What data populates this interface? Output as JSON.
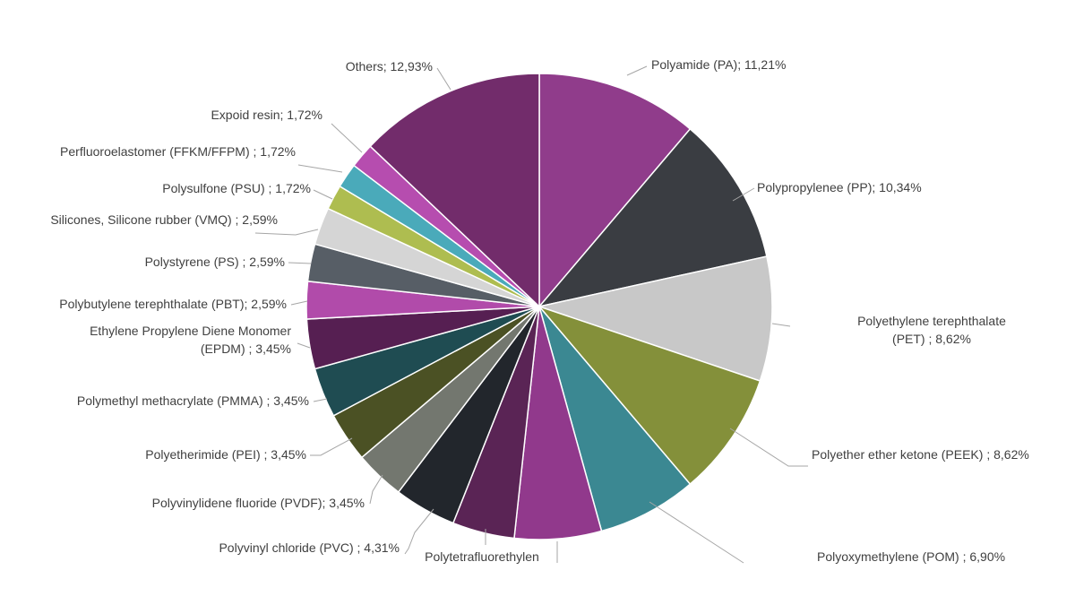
{
  "chart_data": {
    "type": "pie",
    "title": "",
    "unit": "%",
    "start_angle_deg": 0,
    "direction": "clockwise",
    "slices": [
      {
        "label": "Polyamide (PA); 11,21%",
        "value": 11.21,
        "color": "#903C8B"
      },
      {
        "label": "Polypropylenee (PP); 10,34%",
        "value": 10.34,
        "color": "#3A3D42"
      },
      {
        "label": "Polyethylene terephthalate (PET) ; 8,62%",
        "value": 8.62,
        "color": "#C8C8C8"
      },
      {
        "label": "Polyether ether ketone (PEEK) ; 8,62%",
        "value": 8.62,
        "color": "#84903A"
      },
      {
        "label": "Polyoxymethylene (POM) ; 6,90%",
        "value": 6.9,
        "color": "#3B8892"
      },
      {
        "label": "Polytetrafluorethylen",
        "value": 6.03,
        "color": "#91398C"
      },
      {
        "label": "",
        "value": 4.31,
        "color": "#5A2455"
      },
      {
        "label": "Polyvinyl chloride (PVC) ; 4,31%",
        "value": 4.31,
        "color": "#22262C"
      },
      {
        "label": "Polyvinylidene fluoride (PVDF); 3,45%",
        "value": 3.45,
        "color": "#73776F"
      },
      {
        "label": "Polyetherimide (PEI) ; 3,45%",
        "value": 3.45,
        "color": "#4B5124"
      },
      {
        "label": "Polymethyl methacrylate (PMMA) ; 3,45%",
        "value": 3.45,
        "color": "#1F4C52"
      },
      {
        "label": "Ethylene Propylene Diene Monomer (EPDM) ; 3,45%",
        "value": 3.45,
        "color": "#561F52"
      },
      {
        "label": "Polybutylene terephthalate (PBT); 2,59%",
        "value": 2.59,
        "color": "#B14BAA"
      },
      {
        "label": "Polystyrene (PS) ; 2,59%",
        "value": 2.59,
        "color": "#575E66"
      },
      {
        "label": "Silicones, Silicone rubber (VMQ) ; 2,59%",
        "value": 2.59,
        "color": "#D5D5D5"
      },
      {
        "label": "Polysulfone (PSU) ; 1,72%",
        "value": 1.72,
        "color": "#AEBD50"
      },
      {
        "label": "Perfluoroelastomer (FFKM/FFPM) ; 1,72%",
        "value": 1.72,
        "color": "#4AAABA"
      },
      {
        "label": "Expoid resin; 1,72%",
        "value": 1.72,
        "color": "#B64DAF"
      },
      {
        "label": "Others; 12,93%",
        "value": 12.93,
        "color": "#722C6B"
      }
    ]
  }
}
